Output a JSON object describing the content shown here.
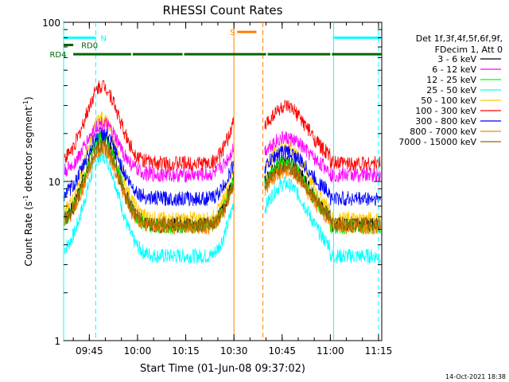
{
  "chart_data": {
    "type": "line",
    "title": "RHESSI Count Rates",
    "xlabel": "Start Time (01-Jun-08 09:37:02)",
    "ylabel_main": "Count Rate (s",
    "ylabel_sup1": "-1",
    "ylabel_mid": " detector segment",
    "ylabel_sup2": "-1",
    "ylabel_end": ")",
    "y_scale": "log",
    "ylim": [
      1,
      100
    ],
    "xlim_minutes": [
      0,
      99
    ],
    "x_ticks": [
      {
        "label": "09:45",
        "minute": 8
      },
      {
        "label": "10:00",
        "minute": 23
      },
      {
        "label": "10:15",
        "minute": 38
      },
      {
        "label": "10:30",
        "minute": 53
      },
      {
        "label": "10:45",
        "minute": 68
      },
      {
        "label": "11:00",
        "minute": 83
      },
      {
        "label": "11:15",
        "minute": 98
      }
    ],
    "y_ticks": [
      {
        "label": "1",
        "value": 1
      },
      {
        "label": "10",
        "value": 10
      },
      {
        "label": "100",
        "value": 100
      }
    ],
    "legend": {
      "placement": "right",
      "header": [
        "Det 1f,3f,4f,5f,6f,9f,",
        "FDecim 1, Att 0"
      ]
    },
    "data_gap_minutes": [
      53,
      62
    ],
    "series": [
      {
        "name": "3 - 6 keV",
        "color": "#000000",
        "peak": 19,
        "base": 5.3
      },
      {
        "name": "6 - 12 keV",
        "color": "#ff00ff",
        "peak": 23,
        "base": 11
      },
      {
        "name": "12 - 25 keV",
        "color": "#00ff00",
        "peak": 19,
        "base": 5.2
      },
      {
        "name": "25 - 50 keV",
        "color": "#00ffff",
        "peak": 14.5,
        "base": 3.4
      },
      {
        "name": "50 - 100 keV",
        "color": "#ffcc00",
        "peak": 25,
        "base": 5.8
      },
      {
        "name": "100 - 300 keV",
        "color": "#ff0000",
        "peak": 40,
        "base": 13
      },
      {
        "name": "300 - 800 keV",
        "color": "#0000ff",
        "peak": 20,
        "base": 7.8
      },
      {
        "name": "800 - 7000 keV",
        "color": "#ff8000",
        "peak": 16,
        "base": 5.2
      },
      {
        "name": "7000 - 15000 keV",
        "color": "#996600",
        "peak": 17,
        "base": 5.4
      }
    ],
    "annotations": [
      {
        "label": "N",
        "color": "#00ffff",
        "segments": [
          [
            0,
            10
          ],
          [
            84,
            99
          ]
        ],
        "value": 80
      },
      {
        "label": "RD0",
        "color": "#006400",
        "segments": [
          [
            0,
            3
          ]
        ],
        "value": 72
      },
      {
        "label": "RD4",
        "color": "#006400",
        "segments": [
          [
            3,
            21
          ],
          [
            21.5,
            37
          ],
          [
            37.5,
            63
          ],
          [
            63.5,
            83
          ],
          [
            83.5,
            99
          ]
        ],
        "value": 63
      },
      {
        "label": "S",
        "color": "#ff8000",
        "segments": [
          [
            54,
            60
          ]
        ],
        "value": 87
      }
    ],
    "vertical_markers": [
      {
        "minute": 0,
        "color": "#00ffff",
        "style": "solid"
      },
      {
        "minute": 10,
        "color": "#00ffff",
        "style": "dashed"
      },
      {
        "minute": 84,
        "color": "#00ffff",
        "style": "solid"
      },
      {
        "minute": 98,
        "color": "#00ffff",
        "style": "dashed"
      },
      {
        "minute": 53,
        "color": "#ff8000",
        "style": "solid"
      },
      {
        "minute": 62,
        "color": "#ff8000",
        "style": "dashed"
      }
    ]
  },
  "footer": {
    "date": "14-Oct-2021 18:38"
  }
}
